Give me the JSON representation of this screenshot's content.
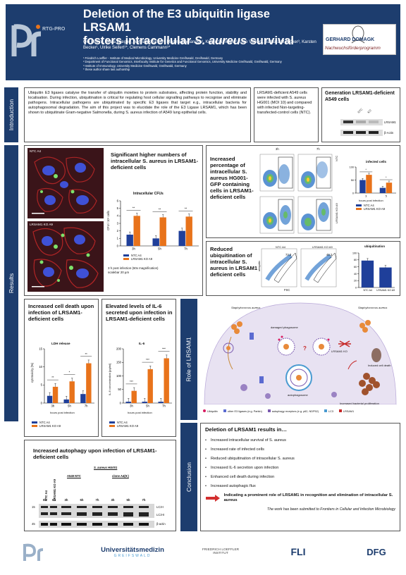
{
  "header": {
    "logo_text": "RTG-PRO",
    "title_line1": "Deletion of the E3 ubiquitin ligase LRSAM1",
    "title_line2_pre": "fosters intracellular ",
    "title_line2_ital": "S. aureus",
    "title_line2_post": " survival",
    "authors": "Ole Plöhn¹, Clara Greger¹, Abhishek Singh¹, Madina Baglanova¹, Kristin Surmann², Uwe Völker², Barbara M Bröker³, Karsten Becker¹, Ulrike Seifert¹*, Clemens Cammann¹*",
    "affil1": "¹ Friedrich Loeffler - Institute of Medical Microbiology, University Medicine Greifswald, Greifswald, Germany",
    "affil2": "² Department of Functional Genomics, Interfaculty Institute for Genetics and Functional Genomics, University Medicine Greifswald, Greifswald, Germany",
    "affil3": "³ Institute of Immunology, University Medicine Greifswald, Greifswald, Germany",
    "affil4": "* these author share last authorship",
    "domagk_name": "GERHARD DOMAGK",
    "domagk_sub": "Nachwuchsförderprogramm"
  },
  "sections": {
    "intro": "Introduction",
    "results": "Results",
    "role": "Role of LRSAM1",
    "conclusion": "Conclusion"
  },
  "intro": {
    "text": "Ubiquitin E3 ligases catalyse the transfer of ubiquitin moieties to protein substrates, affecting protein function, stability and localisation. During infection, ubiquitination is critical for regulating host cellular signalling pathways to recognise and eliminate pathogens. Intracellular pathogens are ubiquitinated by specific E3 ligases that target e.g., intracellular bacteria for autophagosomal degradation. The aim of this project was to elucidate the role of the E3 Ligase LRSAM1, which has been shown to ubiquitinate Gram-negative Salmonella, during S. aureus infection of A549 lung epithelial cells.",
    "cells_text": "LRSAM1-deficient A549 cells were infected with S. aureus HG001 (MOI 10) and compared with infected Non-targeting-transfected-control cells (NTC).",
    "gen_title": "Generation LRSAM1-deficient A549 cells",
    "wb_lrsam1": "LRSAM1",
    "wb_actin": "β-Actin"
  },
  "cfu": {
    "heading": "Significant higher numbers of intracellular S. aureus in LRSAM1-deficient cells",
    "micro1_label": "NTC A4",
    "micro2_label": "LRSAM1 KO A9",
    "chart_title": "Intracellular CFUs",
    "ylabel": "CFU / 10⁵ cells",
    "ylabel_small": "",
    "xlabel": "",
    "legend": [
      "NTC A4",
      "LRSAM1 KO A9"
    ],
    "sig": [
      "**",
      "**",
      "**"
    ],
    "caption": "3 h post infection (60x magnification) scalebar 20 µm"
  },
  "facs": {
    "heading": "Increased percentage of intracellular S. aureus HG001-GFP containing cells in LRSAM1-deficient cells",
    "col1": "3h",
    "col2": "7h",
    "row1": "NTC",
    "row2": "LRSAM1 KO A9",
    "chart_title": "infected cells",
    "xlabel": "hours post infection",
    "legend": [
      "NTC A4",
      "LRSAM1 KO A9"
    ]
  },
  "ubiq": {
    "heading": "Reduced ubiquitination of intracellular S. aureus in LRSAM1 deficient cells",
    "gate1_label": "NTC A4",
    "gate2_label": "LRSAM1 KO A9",
    "gate1_val": "73,3",
    "gate2_val": "46,2",
    "axis_x": "FSC",
    "axis_y": "ubiquitin",
    "chart_title": "ubiquitination",
    "cats": [
      "NTC A4",
      "LRSAM1 KO A9"
    ]
  },
  "ldh": {
    "heading": "Increased cell death upon infection of LRSAM1-deficient cells",
    "chart_title": "LDH release",
    "ylabel": "cytotoxicity (%)",
    "xlabel": "hours post infection",
    "legend": [
      "NTC A4",
      "LRSAM1 KO A9"
    ],
    "sig": [
      "**",
      "*",
      "**"
    ]
  },
  "il6": {
    "heading": "Elevated levels of IL-6 secreted upon infection in LRSAM1-deficient cells",
    "chart_title": "IL-6",
    "ylabel": "IL-6 concentration [pg/ml]",
    "xlabel": "hours post infection",
    "legend": [
      "NTC A4",
      "LRSAM1 KO A9"
    ],
    "sig": [
      "***",
      "***",
      "***"
    ]
  },
  "role": {
    "label_left": "Staphylococcus aureus",
    "label_right": "Staphylococcus aureus",
    "label_ko": "LRSAM1 KO",
    "label_dmg": "damaged phagosome",
    "label_auto": "autophagosome",
    "label_death": "Induced cell death",
    "label_il6": "Increased bacterial proliferation",
    "question": "?",
    "legend": [
      "Ubiquitin",
      "other E3 ligases (e.g. Parkin)",
      "autophagy receptors (e.g. p62, NDP52)",
      "LC3",
      "LRSAM1"
    ]
  },
  "autophagy": {
    "heading": "Increased autophagy upon infection of LRSAM1-deficient cells",
    "lanes_vert": [
      "NTC A4",
      "LRSAM1 KO A9"
    ],
    "infection": "S. aureus HG001",
    "group1": "A549 NTC",
    "group2": "clone A4(9-)",
    "times": [
      "3h",
      "5h",
      "7h",
      "3h",
      "5h",
      "7h"
    ],
    "time0": [
      "0h",
      "0h"
    ],
    "kd15": "15",
    "kd45": "45",
    "lc3i": "LC3-I",
    "lc3ii": "LC3-II",
    "bactin": "β-actin"
  },
  "conclusion": {
    "title": "Deletion of LRSAM1 results in…",
    "items": [
      "Increased intracellular survival of S. aureus",
      "Increased rate of infected cells",
      "Reduced ubiquitination of intracellular S. aureus",
      "Increased IL-6 secretion upon infection",
      "Enhanced cell death during infection",
      "Increased autophagic flux"
    ],
    "final": "Indicating a prominent role of LRSAM1 in recognition and elimination of intracellular S. aureus",
    "submitted": "The work has been submitted to Frontiers in Cellular and Infection Microbiology"
  },
  "footer": {
    "unimed": "Universitätsmedizin",
    "unimed_sub": "GREIFSWALD",
    "loeffler": "FRIEDRICH LOEFFLER INSTITUT",
    "fli": "FLI",
    "dfg": "DFG"
  },
  "colors": {
    "navy": "#1d3d6e",
    "bar_ntc": "#1f3f9a",
    "bar_ko": "#e8731b",
    "accent": "#4a9bd1"
  },
  "chart_data": [
    {
      "id": "cfu",
      "type": "bar",
      "categories": [
        "3h",
        "5h",
        "7h"
      ],
      "series": [
        {
          "name": "NTC A4",
          "values": [
            1.5,
            1.0,
            2.0
          ]
        },
        {
          "name": "LRSAM1 KO A9",
          "values": [
            4.0,
            3.8,
            3.9
          ]
        }
      ],
      "title": "Intracellular CFUs",
      "ylabel": "CFU / 10⁵ cells",
      "ylim": [
        0,
        6
      ],
      "yticks": [
        0,
        1,
        2,
        3,
        4,
        5,
        6
      ]
    },
    {
      "id": "infected",
      "type": "bar",
      "categories": [
        "3",
        "5"
      ],
      "series": [
        {
          "name": "NTC A4",
          "values": [
            50,
            20
          ]
        },
        {
          "name": "LRSAM1 KO A9",
          "values": [
            70,
            40
          ]
        }
      ],
      "title": "infected cells",
      "xlabel": "hours post infection",
      "ylim": [
        0,
        100
      ],
      "yticks": [
        0,
        50,
        100
      ]
    },
    {
      "id": "ubiquitination",
      "type": "bar",
      "categories": [
        "NTC A4",
        "LRSAM1 KO A9"
      ],
      "series": [
        {
          "name": "ubiquitination",
          "values": [
            78,
            58
          ]
        }
      ],
      "title": "ubiquitination",
      "ylim": [
        0,
        100
      ],
      "yticks": [
        0,
        20,
        40,
        60,
        80,
        100
      ]
    },
    {
      "id": "ldh",
      "type": "bar",
      "categories": [
        "3h",
        "5h",
        "7h"
      ],
      "series": [
        {
          "name": "NTC A4",
          "values": [
            2.0,
            1.0,
            2.5
          ]
        },
        {
          "name": "LRSAM1 KO A9",
          "values": [
            4.5,
            6.0,
            11.0
          ]
        }
      ],
      "title": "LDH release",
      "ylabel": "cytotoxicity (%)",
      "xlabel": "hours post infection",
      "ylim": [
        0,
        15
      ],
      "yticks": [
        0,
        5,
        10,
        15
      ]
    },
    {
      "id": "il6",
      "type": "bar",
      "categories": [
        "3h",
        "5h",
        "7h"
      ],
      "series": [
        {
          "name": "NTC A4",
          "values": [
            5,
            5,
            5
          ]
        },
        {
          "name": "LRSAM1 KO A9",
          "values": [
            45,
            125,
            165
          ]
        }
      ],
      "title": "IL-6",
      "ylabel": "IL-6 concentration [pg/ml]",
      "xlabel": "hours post infection",
      "ylim": [
        0,
        200
      ],
      "yticks": [
        0,
        50,
        100,
        150,
        200
      ]
    }
  ]
}
